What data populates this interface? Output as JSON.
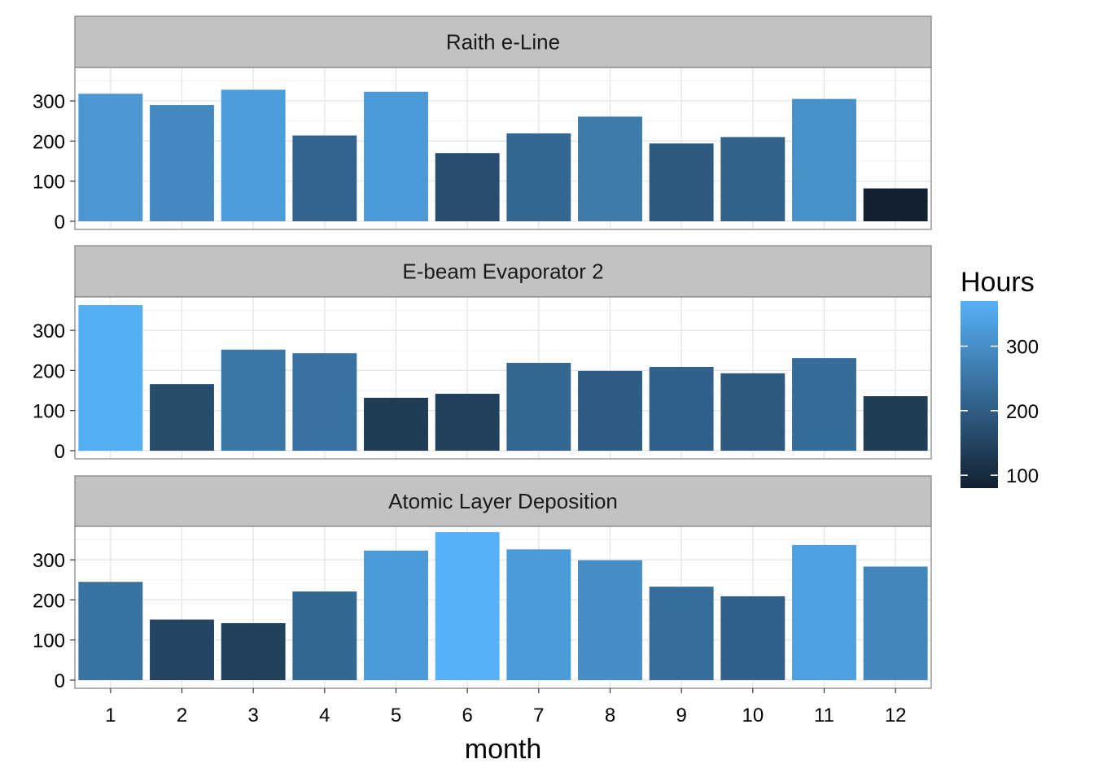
{
  "chart_data": {
    "type": "bar",
    "facets": [
      "Raith e-Line",
      "E-beam Evaporator 2",
      "Atomic Layer Deposition"
    ],
    "categories": [
      "1",
      "2",
      "3",
      "4",
      "5",
      "6",
      "7",
      "8",
      "9",
      "10",
      "11",
      "12"
    ],
    "series": [
      {
        "name": "Raith e-Line",
        "values": [
          318,
          290,
          328,
          214,
          323,
          170,
          219,
          261,
          194,
          210,
          305,
          82
        ]
      },
      {
        "name": "E-beam Evaporator 2",
        "values": [
          363,
          166,
          252,
          243,
          132,
          142,
          219,
          199,
          209,
          193,
          231,
          136
        ]
      },
      {
        "name": "Atomic Layer Deposition",
        "values": [
          245,
          151,
          142,
          221,
          323,
          369,
          326,
          299,
          233,
          209,
          337,
          283
        ]
      }
    ],
    "xlabel": "month",
    "ylabel": "",
    "ylim": [
      0,
      380
    ],
    "yticks": [
      0,
      100,
      200,
      300
    ],
    "grid": true,
    "legend": {
      "title": "Hours",
      "placement": "right",
      "ticks": [
        100,
        200,
        300
      ],
      "range": [
        80,
        370
      ],
      "color_low": "#132132",
      "color_high": "#56B1F7"
    }
  }
}
